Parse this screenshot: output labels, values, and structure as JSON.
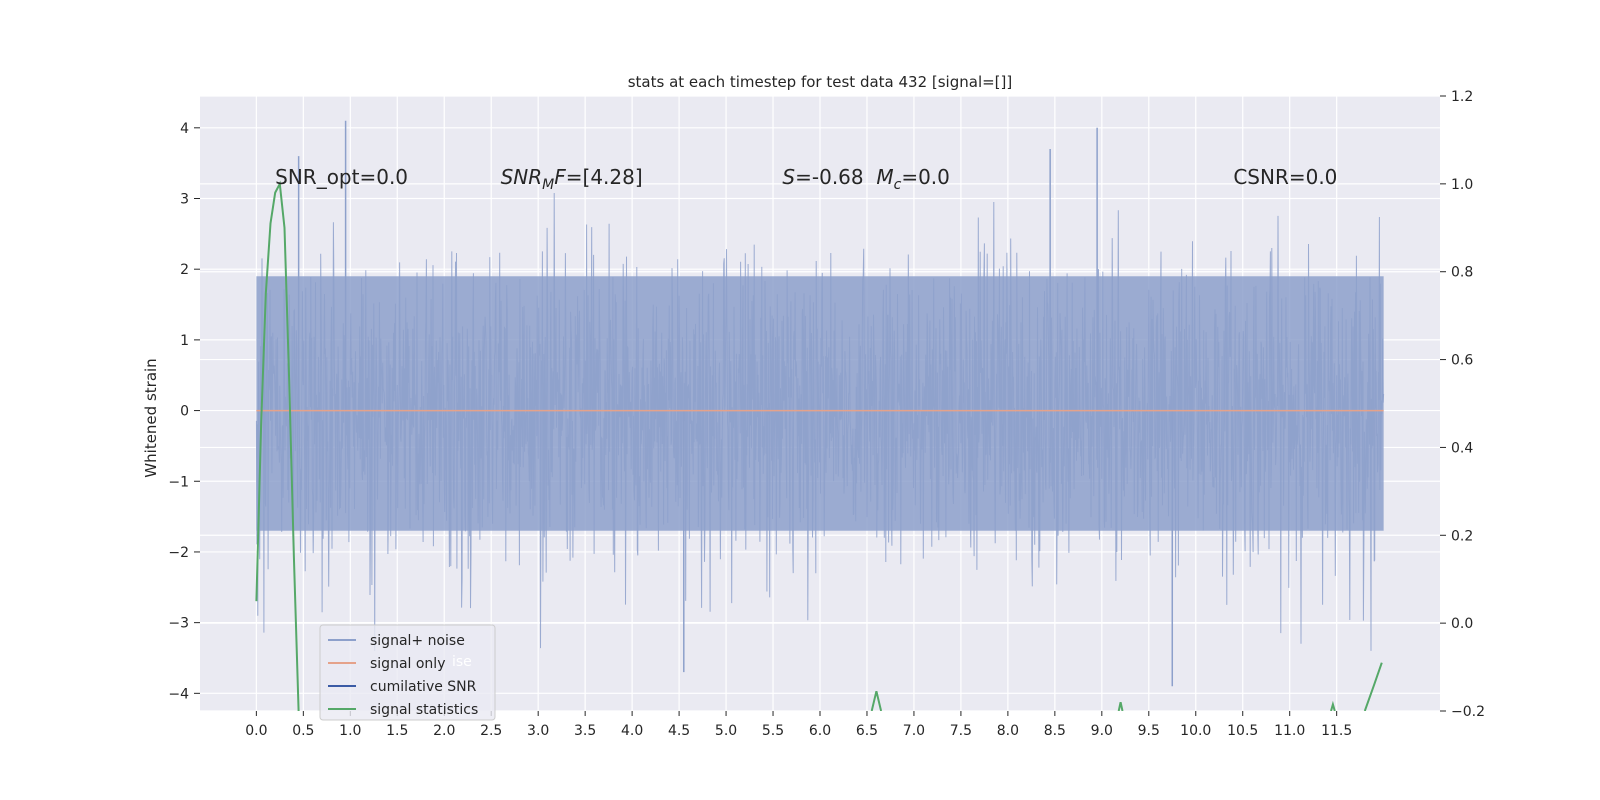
{
  "chart_data": {
    "type": "line",
    "title": "stats at each timestep for test data 432 [signal=[]]",
    "ylabel": "Whitened strain",
    "xlabel": "",
    "xlim": [
      -0.6,
      12.6
    ],
    "ylim": [
      -4.25,
      4.45
    ],
    "y2lim": [
      -0.2,
      1.2
    ],
    "xticks": [
      0.0,
      0.5,
      1.0,
      1.5,
      2.0,
      2.5,
      3.0,
      3.5,
      4.0,
      4.5,
      5.0,
      5.5,
      6.0,
      6.5,
      7.0,
      7.5,
      8.0,
      8.5,
      9.0,
      9.5,
      10.0,
      10.5,
      11.0,
      11.5
    ],
    "xtick_labels": [
      "0.0",
      "0.5",
      "1.0",
      "1.5",
      "2.0",
      "2.5",
      "3.0",
      "3.5",
      "4.0",
      "4.5",
      "5.0",
      "5.5",
      "6.0",
      "6.5",
      "7.0",
      "7.5",
      "8.0",
      "8.5",
      "9.0",
      "9.5",
      "10.0",
      "10.5",
      "11.0",
      "11.5"
    ],
    "yticks": [
      4,
      3,
      2,
      1,
      0,
      -1,
      -2,
      -3,
      -4
    ],
    "ytick_labels": [
      "4",
      "3",
      "2",
      "1",
      "0",
      "−1",
      "−2",
      "−3",
      "−4"
    ],
    "y2ticks": [
      1.2,
      1.0,
      0.8,
      0.6,
      0.4,
      0.2,
      0.0,
      -0.2
    ],
    "y2tick_labels": [
      "1.2",
      "1.0",
      "0.8",
      "0.6",
      "0.4",
      "0.2",
      "0.0",
      "−0.2"
    ],
    "grid": true,
    "legend_position": "lower-left",
    "annotations": [
      {
        "text": "SNR_opt=0.0",
        "x": 0.2
      },
      {
        "text": "SNR_MF=[4.28]",
        "x": 2.6
      },
      {
        "text": "S=-0.68  M_c=0.0",
        "x": 5.6
      },
      {
        "text": "CSNR=0.0",
        "x": 10.4
      }
    ],
    "series": [
      {
        "name": "signal+ noise",
        "color": "#8da0cb",
        "axis": "left",
        "x_range": [
          0.0,
          12.0
        ],
        "noise_model": "whitened gaussian noise, |y| mostly below 2, peaks near 4",
        "notable_points": [
          {
            "x": 0.95,
            "y": 4.1
          },
          {
            "x": 8.95,
            "y": 4.0
          },
          {
            "x": 0.45,
            "y": 3.6
          },
          {
            "x": 8.45,
            "y": 3.7
          },
          {
            "x": 4.55,
            "y": -3.7
          },
          {
            "x": 9.75,
            "y": -3.9
          }
        ]
      },
      {
        "name": "signal only",
        "color": "#e5a28a",
        "axis": "left",
        "x": [
          0.0,
          12.0
        ],
        "y": [
          0.0,
          0.0
        ]
      },
      {
        "name": "cumilative SNR",
        "color": "#3b5ba5",
        "axis": "right",
        "x": [],
        "y": []
      },
      {
        "name": "signal statistics",
        "color": "#55a868",
        "axis": "right",
        "segments": [
          {
            "x": [
              0.0,
              0.05,
              0.1,
              0.15,
              0.2,
              0.25,
              0.3,
              0.35,
              0.4,
              0.45
            ],
            "y": [
              0.05,
              0.45,
              0.75,
              0.91,
              0.98,
              1.0,
              0.9,
              0.55,
              0.15,
              -0.2
            ]
          },
          {
            "x": [
              6.55,
              6.6,
              6.65
            ],
            "y": [
              -0.2,
              -0.155,
              -0.2
            ]
          },
          {
            "x": [
              9.18,
              9.2,
              9.22
            ],
            "y": [
              -0.2,
              -0.18,
              -0.2
            ]
          },
          {
            "x": [
              11.44,
              11.46,
              11.48
            ],
            "y": [
              -0.2,
              -0.185,
              -0.2
            ]
          },
          {
            "x": [
              11.8,
              11.9,
              11.98
            ],
            "y": [
              -0.2,
              -0.14,
              -0.09
            ]
          }
        ]
      }
    ],
    "legend": [
      "signal+ noise",
      "signal only",
      "cumilative SNR",
      "signal statistics"
    ],
    "legend_ghost_text": "ise"
  }
}
